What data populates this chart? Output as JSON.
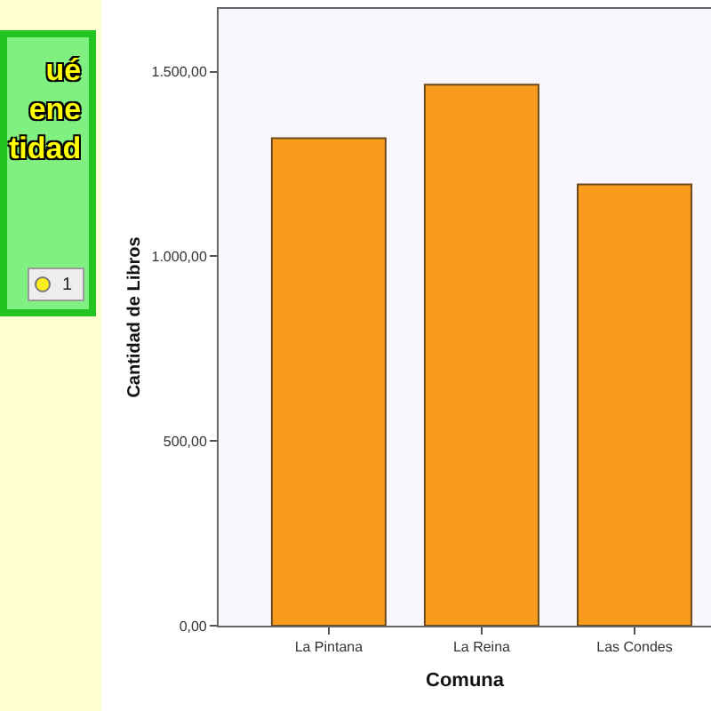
{
  "chart_data": {
    "type": "bar",
    "xlabel": "Comuna",
    "ylabel": "Cantidad de Libros",
    "categories": [
      "La Pintana",
      "La Reina",
      "Las Condes"
    ],
    "values": [
      1320,
      1465,
      1195
    ],
    "color": "#f99b1c",
    "ylim": [
      0,
      1670
    ],
    "yticks": [
      {
        "value": 0,
        "label": "0,00"
      },
      {
        "value": 500,
        "label": "500,00"
      },
      {
        "value": 1000,
        "label": "1.000,00"
      },
      {
        "value": 1500,
        "label": "1.500,00"
      }
    ],
    "annotations": [
      "ué\nene\ntidad",
      "1"
    ]
  }
}
